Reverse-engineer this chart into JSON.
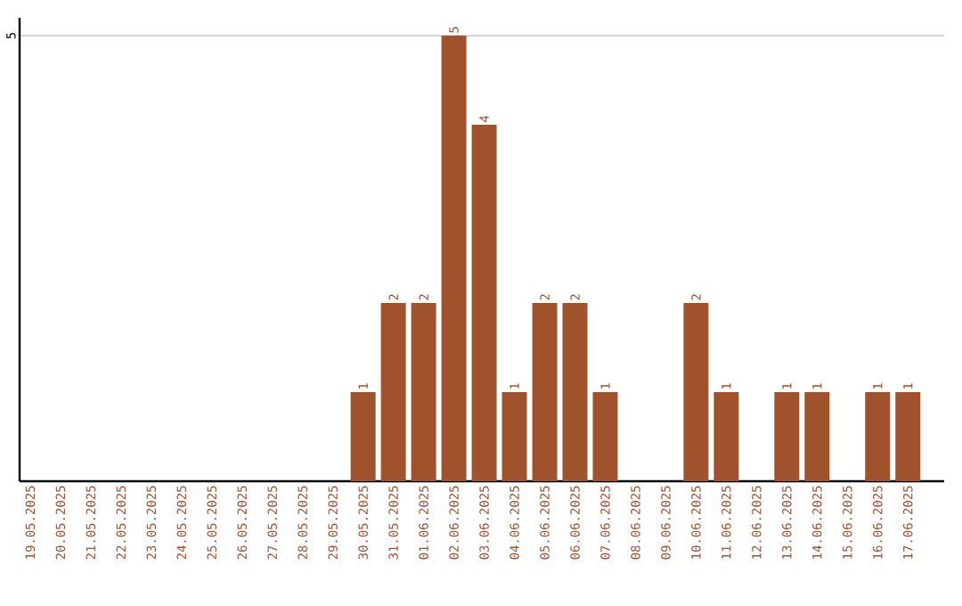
{
  "chart_data": {
    "type": "bar",
    "categories": [
      "19.05.2025",
      "20.05.2025",
      "21.05.2025",
      "22.05.2025",
      "23.05.2025",
      "24.05.2025",
      "25.05.2025",
      "26.05.2025",
      "27.05.2025",
      "28.05.2025",
      "29.05.2025",
      "30.05.2025",
      "31.05.2025",
      "01.06.2025",
      "02.06.2025",
      "03.06.2025",
      "04.06.2025",
      "05.06.2025",
      "06.06.2025",
      "07.06.2025",
      "08.06.2025",
      "09.06.2025",
      "10.06.2025",
      "11.06.2025",
      "12.06.2025",
      "13.06.2025",
      "14.06.2025",
      "15.06.2025",
      "16.06.2025",
      "17.06.2025"
    ],
    "values": [
      0,
      0,
      0,
      0,
      0,
      0,
      0,
      0,
      0,
      0,
      0,
      1,
      2,
      2,
      5,
      4,
      1,
      2,
      2,
      1,
      0,
      0,
      2,
      1,
      0,
      1,
      1,
      0,
      1,
      1
    ],
    "value_labels": [
      null,
      null,
      null,
      null,
      null,
      null,
      null,
      null,
      null,
      null,
      null,
      "1",
      "2",
      "2",
      "5",
      "4",
      "1",
      "2",
      "2",
      "1",
      null,
      null,
      "2",
      "1",
      null,
      "1",
      "1",
      null,
      "1",
      "1"
    ],
    "color": "#a0522d",
    "ylim": [
      0,
      5.2
    ],
    "yticks": [
      5
    ],
    "grid": "y"
  }
}
